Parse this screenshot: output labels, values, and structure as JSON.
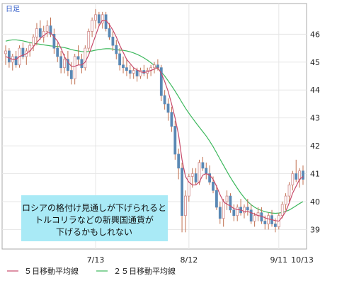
{
  "period_label": "日足",
  "legend": [
    {
      "label": "５日移動平均線",
      "color": "#c84a6a"
    },
    {
      "label": "２５日移動平均線",
      "color": "#3cb85c"
    }
  ],
  "annotation": {
    "lines": [
      "ロシアの格付け見通しが下げられると",
      "トルコリラなどの新興国通貨が",
      "下げるかもしれない"
    ],
    "background": "#a9eaf6"
  },
  "chart_data": {
    "type": "candlestick",
    "x_ticks": [
      "7/13",
      "8/12",
      "9/11",
      "10/13"
    ],
    "y_ticks": [
      39,
      40,
      41,
      42,
      43,
      44,
      45,
      46
    ],
    "ylim": [
      38.3,
      47.1
    ],
    "grid": true,
    "colors": {
      "up": "#ffffff",
      "down": "#5a88b4",
      "wick": "#c07050",
      "outline": "#d08a8a"
    },
    "ohlc": [
      [
        45.3,
        45.6,
        44.9,
        45.4
      ],
      [
        45.4,
        45.5,
        44.8,
        45.0
      ],
      [
        45.0,
        45.3,
        44.7,
        45.2
      ],
      [
        45.2,
        45.4,
        44.8,
        44.9
      ],
      [
        44.9,
        45.6,
        44.8,
        45.5
      ],
      [
        45.5,
        45.7,
        45.1,
        45.2
      ],
      [
        45.2,
        45.5,
        44.9,
        45.4
      ],
      [
        45.4,
        45.7,
        45.2,
        45.6
      ],
      [
        45.6,
        46.0,
        45.4,
        45.9
      ],
      [
        45.9,
        46.4,
        45.6,
        46.2
      ],
      [
        46.2,
        46.5,
        45.8,
        45.9
      ],
      [
        45.9,
        46.3,
        45.7,
        46.1
      ],
      [
        46.1,
        46.5,
        45.9,
        46.3
      ],
      [
        46.3,
        46.6,
        45.9,
        46.0
      ],
      [
        46.0,
        46.2,
        45.3,
        45.5
      ],
      [
        45.5,
        45.7,
        45.0,
        45.2
      ],
      [
        45.2,
        45.4,
        44.6,
        44.8
      ],
      [
        44.8,
        45.3,
        44.6,
        45.1
      ],
      [
        45.1,
        45.4,
        44.5,
        44.7
      ],
      [
        44.7,
        45.0,
        44.2,
        44.4
      ],
      [
        44.4,
        45.3,
        44.2,
        45.2
      ],
      [
        45.2,
        45.6,
        44.9,
        45.1
      ],
      [
        45.1,
        45.3,
        44.6,
        44.8
      ],
      [
        44.8,
        45.6,
        44.7,
        45.5
      ],
      [
        45.5,
        46.2,
        45.4,
        46.1
      ],
      [
        46.1,
        46.6,
        45.9,
        46.5
      ],
      [
        46.5,
        46.9,
        46.2,
        46.7
      ],
      [
        46.7,
        46.8,
        46.3,
        46.4
      ],
      [
        46.4,
        46.8,
        46.2,
        46.7
      ],
      [
        46.7,
        46.8,
        46.1,
        46.2
      ],
      [
        46.2,
        46.4,
        45.8,
        45.9
      ],
      [
        45.9,
        46.1,
        45.4,
        45.6
      ],
      [
        45.6,
        45.8,
        45.1,
        45.3
      ],
      [
        45.3,
        45.5,
        44.7,
        44.9
      ],
      [
        44.9,
        45.2,
        44.6,
        44.8
      ],
      [
        44.8,
        45.1,
        44.5,
        44.7
      ],
      [
        44.7,
        44.9,
        44.4,
        44.6
      ],
      [
        44.6,
        44.8,
        44.4,
        44.7
      ],
      [
        44.7,
        44.8,
        44.3,
        44.5
      ],
      [
        44.5,
        44.8,
        44.4,
        44.7
      ],
      [
        44.7,
        44.9,
        44.5,
        44.6
      ],
      [
        44.6,
        44.8,
        44.4,
        44.7
      ],
      [
        44.7,
        44.9,
        44.5,
        44.8
      ],
      [
        44.8,
        45.0,
        44.6,
        44.9
      ],
      [
        44.9,
        45.1,
        44.7,
        44.8
      ],
      [
        44.8,
        44.9,
        43.6,
        43.8
      ],
      [
        43.8,
        44.0,
        43.3,
        43.5
      ],
      [
        43.5,
        43.7,
        42.9,
        43.2
      ],
      [
        43.2,
        43.4,
        42.5,
        42.7
      ],
      [
        42.7,
        42.9,
        41.5,
        41.7
      ],
      [
        41.7,
        41.9,
        40.8,
        41.2
      ],
      [
        41.2,
        41.4,
        38.9,
        39.5
      ],
      [
        39.5,
        40.4,
        38.9,
        40.2
      ],
      [
        40.2,
        41.0,
        40.0,
        40.9
      ],
      [
        40.9,
        41.2,
        40.5,
        41.0
      ],
      [
        41.0,
        41.2,
        40.6,
        40.7
      ],
      [
        40.7,
        41.5,
        40.6,
        41.4
      ],
      [
        41.4,
        41.6,
        41.1,
        41.2
      ],
      [
        41.2,
        41.4,
        40.8,
        41.0
      ],
      [
        41.0,
        41.3,
        40.6,
        40.7
      ],
      [
        40.7,
        40.9,
        40.3,
        40.4
      ],
      [
        40.4,
        40.6,
        39.7,
        39.8
      ],
      [
        39.8,
        40.0,
        39.2,
        39.4
      ],
      [
        39.4,
        40.1,
        39.1,
        40.0
      ],
      [
        40.0,
        40.4,
        39.7,
        40.2
      ],
      [
        40.2,
        40.3,
        39.6,
        39.7
      ],
      [
        39.7,
        39.9,
        39.3,
        39.5
      ],
      [
        39.5,
        39.9,
        39.3,
        39.8
      ],
      [
        39.8,
        40.1,
        39.5,
        39.6
      ],
      [
        39.6,
        39.9,
        39.4,
        39.8
      ],
      [
        39.8,
        40.1,
        39.5,
        39.7
      ],
      [
        39.7,
        39.9,
        39.2,
        39.3
      ],
      [
        39.3,
        39.6,
        39.1,
        39.5
      ],
      [
        39.5,
        39.8,
        39.3,
        39.6
      ],
      [
        39.6,
        39.8,
        39.2,
        39.3
      ],
      [
        39.3,
        39.5,
        39.0,
        39.2
      ],
      [
        39.2,
        39.6,
        39.0,
        39.5
      ],
      [
        39.5,
        39.7,
        39.1,
        39.2
      ],
      [
        39.2,
        39.4,
        38.9,
        39.1
      ],
      [
        39.1,
        39.6,
        39.0,
        39.5
      ],
      [
        39.5,
        40.0,
        39.4,
        39.9
      ],
      [
        39.9,
        40.3,
        39.7,
        40.2
      ],
      [
        40.2,
        40.7,
        40.0,
        40.6
      ],
      [
        40.6,
        41.1,
        40.4,
        41.0
      ],
      [
        41.0,
        41.5,
        40.7,
        40.8
      ],
      [
        40.8,
        41.2,
        40.5,
        41.1
      ],
      [
        41.1,
        41.3,
        40.6,
        40.8
      ]
    ],
    "ma5": [
      45.2,
      45.15,
      45.1,
      45.1,
      45.2,
      45.25,
      45.3,
      45.4,
      45.55,
      45.7,
      45.85,
      45.95,
      46.05,
      46.05,
      45.9,
      45.75,
      45.5,
      45.2,
      45.0,
      44.85,
      44.85,
      44.9,
      44.9,
      45.0,
      45.25,
      45.6,
      45.95,
      46.3,
      46.5,
      46.5,
      46.35,
      46.15,
      45.9,
      45.6,
      45.35,
      45.1,
      44.95,
      44.8,
      44.72,
      44.65,
      44.63,
      44.65,
      44.7,
      44.75,
      44.8,
      44.6,
      44.3,
      43.95,
      43.5,
      43.0,
      42.4,
      41.5,
      40.9,
      40.7,
      40.6,
      40.6,
      40.7,
      40.95,
      41.0,
      40.95,
      40.8,
      40.55,
      40.25,
      40.0,
      39.9,
      39.85,
      39.75,
      39.72,
      39.7,
      39.65,
      39.65,
      39.6,
      39.55,
      39.5,
      39.48,
      39.42,
      39.38,
      39.35,
      39.32,
      39.3,
      39.45,
      39.65,
      39.95,
      40.3,
      40.55,
      40.8,
      40.9
    ],
    "ma25": [
      45.75,
      45.78,
      45.8,
      45.8,
      45.78,
      45.76,
      45.73,
      45.7,
      45.68,
      45.66,
      45.64,
      45.62,
      45.6,
      45.58,
      45.57,
      45.56,
      45.54,
      45.52,
      45.49,
      45.45,
      45.42,
      45.4,
      45.38,
      45.37,
      45.38,
      45.4,
      45.43,
      45.45,
      45.47,
      45.48,
      45.48,
      45.47,
      45.45,
      45.43,
      45.42,
      45.4,
      45.37,
      45.33,
      45.28,
      45.22,
      45.15,
      45.07,
      44.98,
      44.88,
      44.77,
      44.65,
      44.5,
      44.33,
      44.15,
      43.96,
      43.76,
      43.55,
      43.35,
      43.17,
      43.0,
      42.83,
      42.67,
      42.51,
      42.35,
      42.17,
      41.97,
      41.75,
      41.52,
      41.3,
      41.08,
      40.87,
      40.67,
      40.48,
      40.3,
      40.14,
      40.0,
      39.89,
      39.8,
      39.73,
      39.68,
      39.64,
      39.61,
      39.59,
      39.58,
      39.59,
      39.61,
      39.65,
      39.7,
      39.77,
      39.85,
      39.93,
      40.0
    ]
  }
}
